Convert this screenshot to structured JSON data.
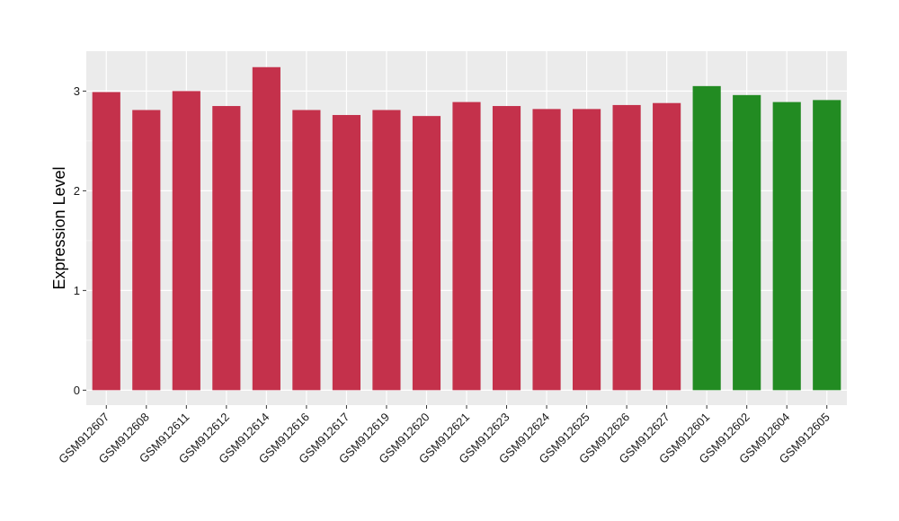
{
  "chart_data": {
    "type": "bar",
    "ylabel": "Expression Level",
    "xlabel": "",
    "title": "",
    "ylim": [
      -0.15,
      3.4
    ],
    "yticks": [
      0,
      1,
      2,
      3
    ],
    "grid": true,
    "legend": "none",
    "colors": {
      "group_a": "#C4314B",
      "group_b": "#228B22",
      "panel": "#EBEBEB",
      "grid": "#FFFFFF",
      "tick": "#333333"
    },
    "categories": [
      "GSM912607",
      "GSM912608",
      "GSM912611",
      "GSM912612",
      "GSM912614",
      "GSM912616",
      "GSM912617",
      "GSM912619",
      "GSM912620",
      "GSM912621",
      "GSM912623",
      "GSM912624",
      "GSM912625",
      "GSM912626",
      "GSM912627",
      "GSM912601",
      "GSM912602",
      "GSM912604",
      "GSM912605"
    ],
    "values": [
      2.99,
      2.81,
      3.0,
      2.85,
      3.24,
      2.81,
      2.76,
      2.81,
      2.75,
      2.89,
      2.85,
      2.82,
      2.82,
      2.86,
      2.88,
      3.05,
      2.96,
      2.89,
      2.91
    ],
    "groups": [
      "a",
      "a",
      "a",
      "a",
      "a",
      "a",
      "a",
      "a",
      "a",
      "a",
      "a",
      "a",
      "a",
      "a",
      "a",
      "b",
      "b",
      "b",
      "b"
    ]
  }
}
